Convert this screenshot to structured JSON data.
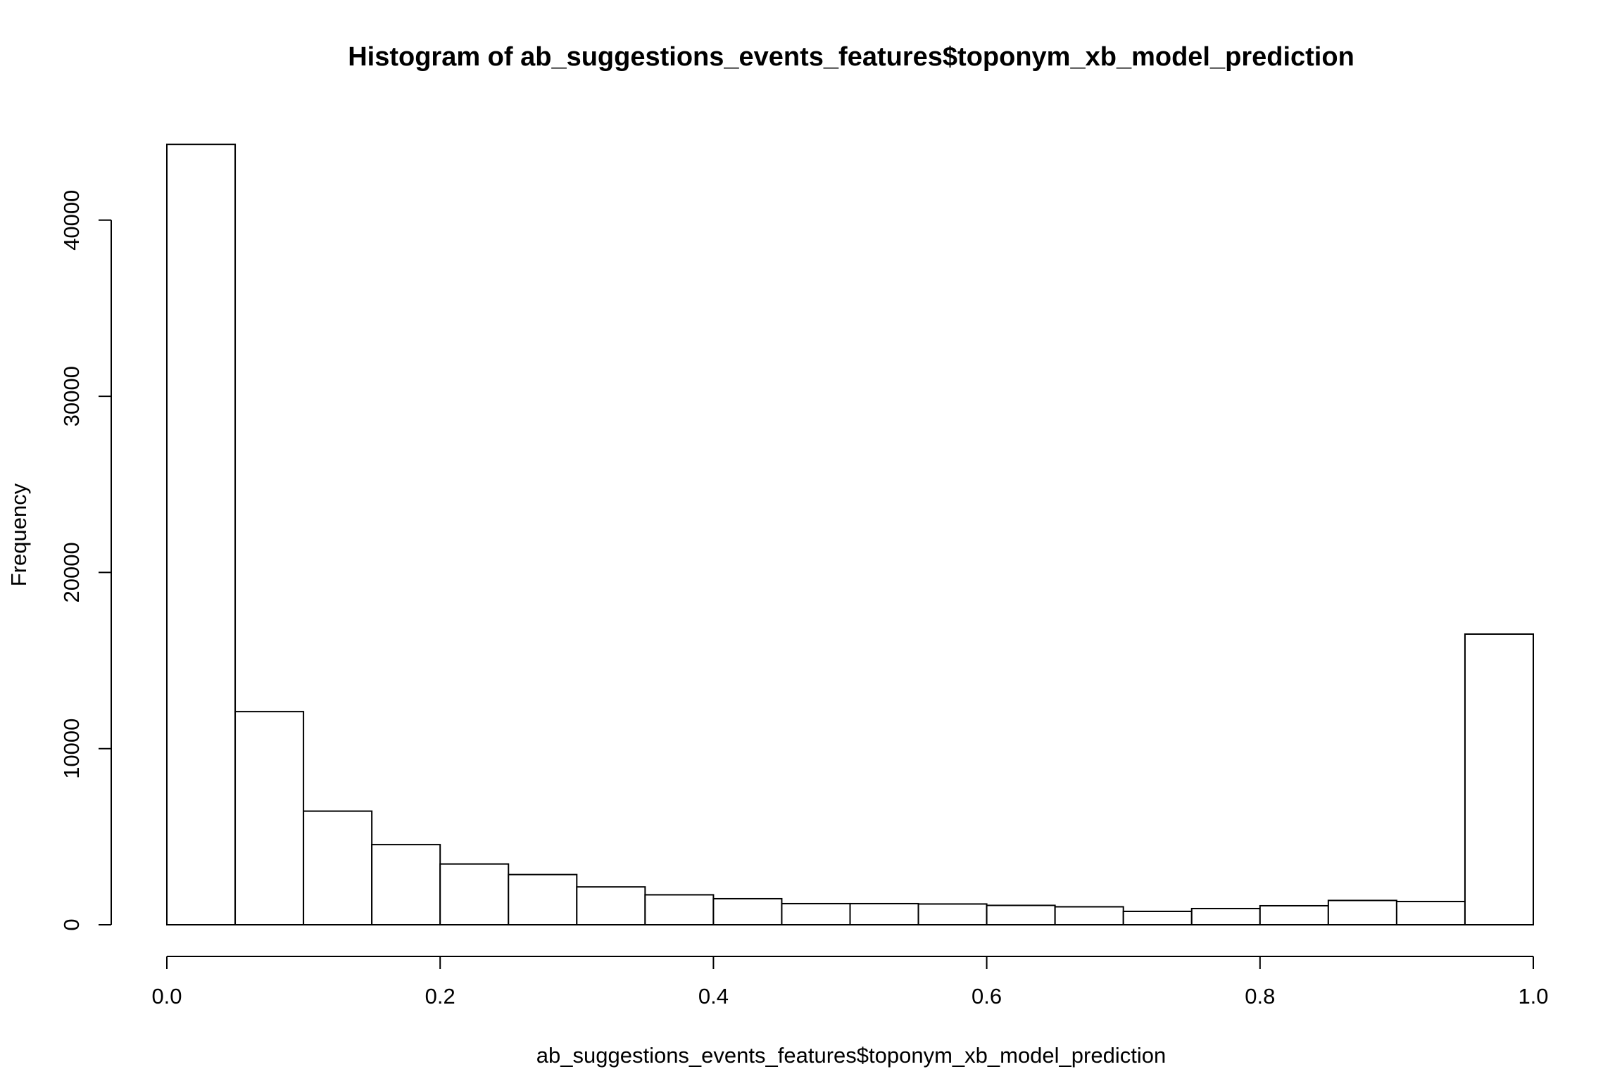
{
  "chart_data": {
    "type": "bar",
    "subtype": "histogram",
    "title": "Histogram of ab_suggestions_events_features$toponym_xb_model_prediction",
    "xlabel": "ab_suggestions_events_features$toponym_xb_model_prediction",
    "ylabel": "Frequency",
    "xlim": [
      0,
      1
    ],
    "ylim": [
      0,
      44300
    ],
    "x_ticks": [
      0,
      0.2,
      0.4,
      0.6,
      0.8,
      1.0
    ],
    "x_tick_labels": [
      "0.0",
      "0.2",
      "0.4",
      "0.6",
      "0.8",
      "1.0"
    ],
    "y_ticks": [
      0,
      10000,
      20000,
      30000,
      40000
    ],
    "y_tick_labels": [
      "0",
      "10000",
      "20000",
      "30000",
      "40000"
    ],
    "bin_edges": [
      0,
      0.05,
      0.1,
      0.15,
      0.2,
      0.25,
      0.3,
      0.35,
      0.4,
      0.45,
      0.5,
      0.55,
      0.6,
      0.65,
      0.7,
      0.75,
      0.8,
      0.85,
      0.9,
      0.95,
      1.0
    ],
    "values": [
      44300,
      12100,
      6450,
      4550,
      3450,
      2850,
      2150,
      1700,
      1480,
      1200,
      1200,
      1180,
      1100,
      1020,
      760,
      920,
      1080,
      1380,
      1320,
      16500
    ],
    "grid": false,
    "fill_color": "#ffffff",
    "edge_color": "#000000"
  }
}
